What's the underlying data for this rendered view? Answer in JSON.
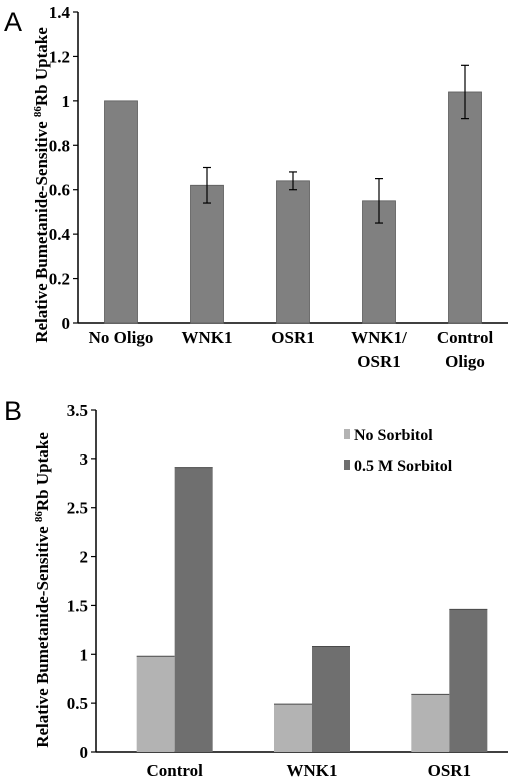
{
  "chart_data": [
    {
      "panel": "A",
      "type": "bar",
      "ylabel": "Relative Bumetanide-Sensitive 86Rb Uptake",
      "ylim": [
        0,
        1.4
      ],
      "yticks": [
        "0",
        "0.2",
        "0.4",
        "0.6",
        "0.8",
        "1",
        "1.2",
        "1.4"
      ],
      "categories": [
        [
          "No Oligo"
        ],
        [
          "WNK1"
        ],
        [
          "OSR1"
        ],
        [
          "WNK1/",
          "OSR1"
        ],
        [
          "Control",
          "Oligo"
        ]
      ],
      "values": [
        1.0,
        0.62,
        0.64,
        0.55,
        1.04
      ],
      "errors": [
        0.0,
        0.08,
        0.04,
        0.1,
        0.12
      ],
      "colors": {
        "bar": "#808080",
        "stroke": "#5a5a5a"
      },
      "grid": false
    },
    {
      "panel": "B",
      "type": "bar",
      "ylabel": "Relative Bumetanide-Sensitive 86Rb Uptake",
      "ylim": [
        0,
        3.5
      ],
      "yticks": [
        "0",
        "0.5",
        "1",
        "1.5",
        "2",
        "2.5",
        "3",
        "3.5"
      ],
      "categories": [
        "Control",
        "WNK1",
        "OSR1"
      ],
      "series": [
        {
          "name": "No Sorbitol",
          "values": [
            0.98,
            0.49,
            0.59
          ],
          "color": "#b3b3b3"
        },
        {
          "name": "0.5 M Sorbitol",
          "values": [
            2.91,
            1.08,
            1.46
          ],
          "color": "#6f6f6f"
        }
      ],
      "legend": "top-right",
      "grid": false
    }
  ]
}
